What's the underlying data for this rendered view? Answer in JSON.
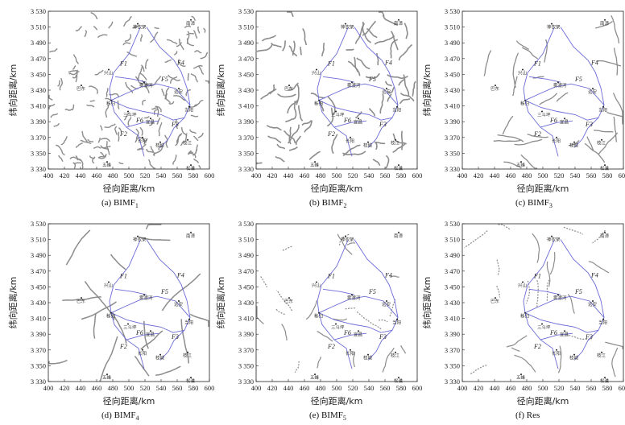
{
  "axes": {
    "xlabel": "径向距离/km",
    "ylabel": "纬向距离/km",
    "x_ticks": [
      "400",
      "420",
      "440",
      "460",
      "480",
      "500",
      "520",
      "540",
      "560",
      "580",
      "600"
    ],
    "y_ticks": [
      "3 530",
      "3 510",
      "3 490",
      "3 470",
      "3 450",
      "3 430",
      "3 410",
      "3 390",
      "3 370",
      "3 350",
      "3 330"
    ],
    "xlim": [
      400,
      600
    ],
    "ylim": [
      3330,
      3530
    ]
  },
  "panels": [
    {
      "title": "(a) BIMF",
      "sub": "1",
      "texture": "dense"
    },
    {
      "title": "(b) BIMF",
      "sub": "2",
      "texture": "medium"
    },
    {
      "title": "(c) BIMF",
      "sub": "3",
      "texture": "sparse"
    },
    {
      "title": "(d) BIMF",
      "sub": "4",
      "texture": "smooth"
    },
    {
      "title": "(e) BIMF",
      "sub": "5",
      "texture": "coarse"
    },
    {
      "title": "(f) Res",
      "sub": "",
      "texture": "coarse"
    }
  ],
  "places": [
    {
      "name": "神农架",
      "x": 511,
      "y": 3514
    },
    {
      "name": "南漳",
      "x": 577,
      "y": 3519
    },
    {
      "name": "兴山",
      "x": 475,
      "y": 3456
    },
    {
      "name": "巴东",
      "x": 441,
      "y": 3436
    },
    {
      "name": "雾渡河",
      "x": 519,
      "y": 3440
    },
    {
      "name": "远安",
      "x": 562,
      "y": 3432
    },
    {
      "name": "秭归",
      "x": 478,
      "y": 3417
    },
    {
      "name": "三斗坪",
      "x": 499,
      "y": 3403
    },
    {
      "name": "宜昌",
      "x": 527,
      "y": 3394
    },
    {
      "name": "当阳",
      "x": 575,
      "y": 3409
    },
    {
      "name": "长阳",
      "x": 517,
      "y": 3370
    },
    {
      "name": "枝城",
      "x": 539,
      "y": 3364
    },
    {
      "name": "枝江",
      "x": 573,
      "y": 3367
    },
    {
      "name": "五峰",
      "x": 473,
      "y": 3339
    },
    {
      "name": "松滋",
      "x": 577,
      "y": 3335
    }
  ],
  "faults": [
    {
      "label": "F1",
      "lx": 489,
      "ly": 3461
    },
    {
      "label": "F2",
      "lx": 489,
      "ly": 3372
    },
    {
      "label": "F3",
      "lx": 553,
      "ly": 3384
    },
    {
      "label": "F4",
      "lx": 560,
      "ly": 3462
    },
    {
      "label": "F5",
      "lx": 540,
      "ly": 3441
    },
    {
      "label": "F6",
      "lx": 509,
      "ly": 3389
    }
  ],
  "colors": {
    "fault_line": "#6a6ad6",
    "contour": "#8c8c8c",
    "frame": "#222222"
  }
}
